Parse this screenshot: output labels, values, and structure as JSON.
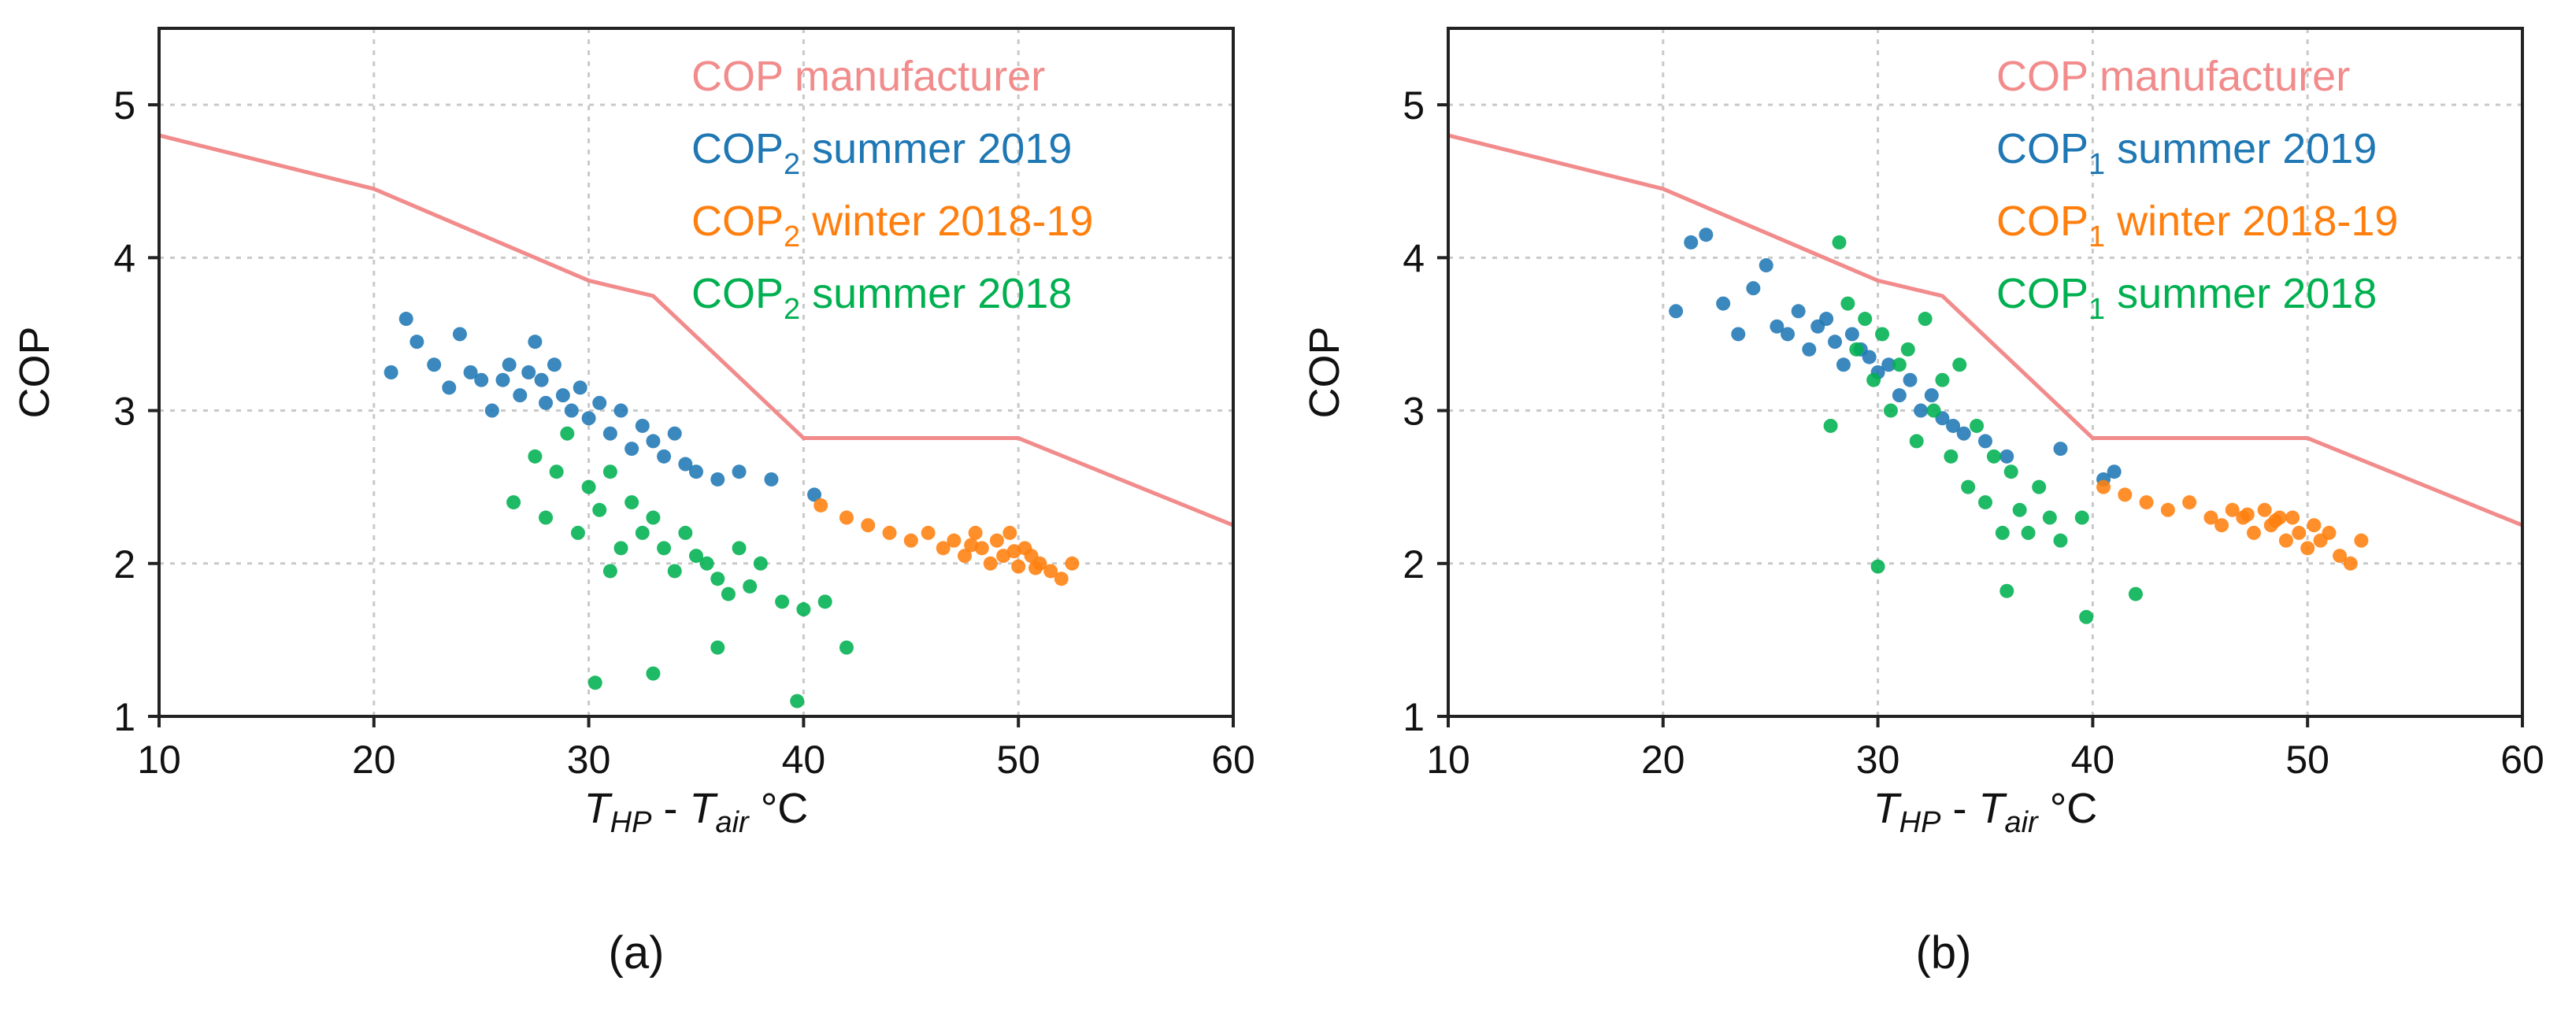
{
  "chart_data": [
    {
      "type": "scatter",
      "panel_label": "(a)",
      "xlabel": {
        "t1": "T",
        "s1": "HP",
        "mid": " - ",
        "t2": "T",
        "s2": "air",
        "unit": " °C"
      },
      "ylabel": "COP",
      "xlim": [
        10,
        60
      ],
      "ylim": [
        1,
        5.5
      ],
      "xticks": [
        "10",
        "20",
        "30",
        "40",
        "50",
        "60"
      ],
      "yticks": [
        "1",
        "2",
        "3",
        "4",
        "5"
      ],
      "grid": true,
      "legend_position": "top-right",
      "manufacturer_curve": {
        "name": "COP manufacturer",
        "color": "#f28b8b",
        "x": [
          10,
          20,
          25,
          30,
          33,
          40,
          50,
          60
        ],
        "y": [
          4.8,
          4.45,
          4.15,
          3.85,
          3.75,
          2.82,
          2.82,
          2.25
        ]
      },
      "series": [
        {
          "legend": {
            "pre": "COP",
            "sub": "2",
            "post": " summer 2019"
          },
          "color": "#1f77b4",
          "x": [
            20.8,
            21.5,
            22.0,
            22.8,
            23.5,
            24.0,
            24.5,
            25.0,
            25.5,
            26.0,
            26.3,
            26.8,
            27.2,
            27.5,
            27.8,
            28.0,
            28.4,
            28.8,
            29.2,
            29.6,
            30.0,
            30.5,
            31.0,
            31.5,
            32.0,
            32.5,
            33.0,
            33.5,
            34.0,
            34.5,
            35.0,
            36.0,
            37.0,
            38.5,
            40.5
          ],
          "y": [
            3.25,
            3.6,
            3.45,
            3.3,
            3.15,
            3.5,
            3.25,
            3.2,
            3.0,
            3.2,
            3.3,
            3.1,
            3.25,
            3.45,
            3.2,
            3.05,
            3.3,
            3.1,
            3.0,
            3.15,
            2.95,
            3.05,
            2.85,
            3.0,
            2.75,
            2.9,
            2.8,
            2.7,
            2.85,
            2.65,
            2.6,
            2.55,
            2.6,
            2.55,
            2.45
          ]
        },
        {
          "legend": {
            "pre": "COP",
            "sub": "2",
            "post": " winter 2018-19"
          },
          "color": "#ff7f0e",
          "x": [
            40.8,
            42.0,
            43.0,
            44.0,
            45.0,
            45.8,
            46.5,
            47.0,
            47.5,
            48.0,
            48.3,
            48.7,
            49.0,
            49.3,
            49.6,
            50.0,
            50.3,
            50.6,
            51.0,
            51.5,
            52.0,
            52.5,
            47.8,
            49.8,
            50.8
          ],
          "y": [
            2.38,
            2.3,
            2.25,
            2.2,
            2.15,
            2.2,
            2.1,
            2.15,
            2.05,
            2.2,
            2.1,
            2.0,
            2.15,
            2.05,
            2.2,
            1.98,
            2.1,
            2.05,
            2.0,
            1.95,
            1.9,
            2.0,
            2.12,
            2.08,
            1.97
          ]
        },
        {
          "legend": {
            "pre": "COP",
            "sub": "2",
            "post": " summer 2018"
          },
          "color": "#00b050",
          "x": [
            26.5,
            27.5,
            28.0,
            28.5,
            29.0,
            29.5,
            30.0,
            30.5,
            31.0,
            31.5,
            32.0,
            32.5,
            33.0,
            33.5,
            34.0,
            34.5,
            35.0,
            35.5,
            36.0,
            36.5,
            37.0,
            37.5,
            38.0,
            39.0,
            40.0,
            41.0,
            42.0,
            30.3,
            33.0,
            39.7,
            36.0,
            31.0
          ],
          "y": [
            2.4,
            2.7,
            2.3,
            2.6,
            2.85,
            2.2,
            2.5,
            2.35,
            2.6,
            2.1,
            2.4,
            2.2,
            2.3,
            2.1,
            1.95,
            2.2,
            2.05,
            2.0,
            1.9,
            1.8,
            2.1,
            1.85,
            2.0,
            1.75,
            1.7,
            1.75,
            1.45,
            1.22,
            1.28,
            1.1,
            1.45,
            1.95
          ]
        }
      ]
    },
    {
      "type": "scatter",
      "panel_label": "(b)",
      "xlabel": {
        "t1": "T",
        "s1": "HP",
        "mid": " - ",
        "t2": "T",
        "s2": "air",
        "unit": " °C"
      },
      "ylabel": "COP",
      "xlim": [
        10,
        60
      ],
      "ylim": [
        1,
        5.5
      ],
      "xticks": [
        "10",
        "20",
        "30",
        "40",
        "50",
        "60"
      ],
      "yticks": [
        "1",
        "2",
        "3",
        "4",
        "5"
      ],
      "grid": true,
      "legend_position": "top-right",
      "manufacturer_curve": {
        "name": "COP manufacturer",
        "color": "#f28b8b",
        "x": [
          10,
          20,
          25,
          30,
          33,
          40,
          50,
          60
        ],
        "y": [
          4.8,
          4.45,
          4.15,
          3.85,
          3.75,
          2.82,
          2.82,
          2.25
        ]
      },
      "series": [
        {
          "legend": {
            "pre": "COP",
            "sub": "1",
            "post": " summer 2019"
          },
          "color": "#1f77b4",
          "x": [
            20.6,
            21.3,
            22.0,
            22.8,
            23.5,
            24.2,
            24.8,
            25.3,
            25.8,
            26.3,
            26.8,
            27.2,
            27.6,
            28.0,
            28.4,
            28.8,
            29.2,
            29.6,
            30.0,
            30.5,
            31.0,
            31.5,
            32.0,
            32.5,
            33.0,
            33.5,
            34.0,
            35.0,
            36.0,
            38.5,
            40.5,
            41.0
          ],
          "y": [
            3.65,
            4.1,
            4.15,
            3.7,
            3.5,
            3.8,
            3.95,
            3.55,
            3.5,
            3.65,
            3.4,
            3.55,
            3.6,
            3.45,
            3.3,
            3.5,
            3.4,
            3.35,
            3.25,
            3.3,
            3.1,
            3.2,
            3.0,
            3.1,
            2.95,
            2.9,
            2.85,
            2.8,
            2.7,
            2.75,
            2.55,
            2.6
          ]
        },
        {
          "legend": {
            "pre": "COP",
            "sub": "1",
            "post": " winter 2018-19"
          },
          "color": "#ff7f0e",
          "x": [
            40.5,
            41.5,
            42.5,
            43.5,
            44.5,
            45.5,
            46.0,
            46.5,
            47.0,
            47.5,
            48.0,
            48.3,
            48.7,
            49.0,
            49.3,
            49.6,
            50.0,
            50.3,
            50.6,
            51.0,
            51.5,
            52.0,
            52.5,
            48.5,
            47.2
          ],
          "y": [
            2.5,
            2.45,
            2.4,
            2.35,
            2.4,
            2.3,
            2.25,
            2.35,
            2.3,
            2.2,
            2.35,
            2.25,
            2.3,
            2.15,
            2.3,
            2.2,
            2.1,
            2.25,
            2.15,
            2.2,
            2.05,
            2.0,
            2.15,
            2.28,
            2.32
          ]
        },
        {
          "legend": {
            "pre": "COP",
            "sub": "1",
            "post": " summer 2018"
          },
          "color": "#00b050",
          "x": [
            27.8,
            28.2,
            28.6,
            29.0,
            29.4,
            29.8,
            30.2,
            30.6,
            31.0,
            31.4,
            31.8,
            32.2,
            32.6,
            33.0,
            33.4,
            33.8,
            34.2,
            34.6,
            35.0,
            35.4,
            35.8,
            36.2,
            36.6,
            37.0,
            37.5,
            38.0,
            38.5,
            39.5,
            42.0,
            30.0,
            39.7,
            36.0
          ],
          "y": [
            2.9,
            4.1,
            3.7,
            3.4,
            3.6,
            3.2,
            3.5,
            3.0,
            3.3,
            3.4,
            2.8,
            3.6,
            3.0,
            3.2,
            2.7,
            3.3,
            2.5,
            2.9,
            2.4,
            2.7,
            2.2,
            2.6,
            2.35,
            2.2,
            2.5,
            2.3,
            2.15,
            2.3,
            1.8,
            1.98,
            1.65,
            1.82
          ]
        }
      ]
    }
  ]
}
